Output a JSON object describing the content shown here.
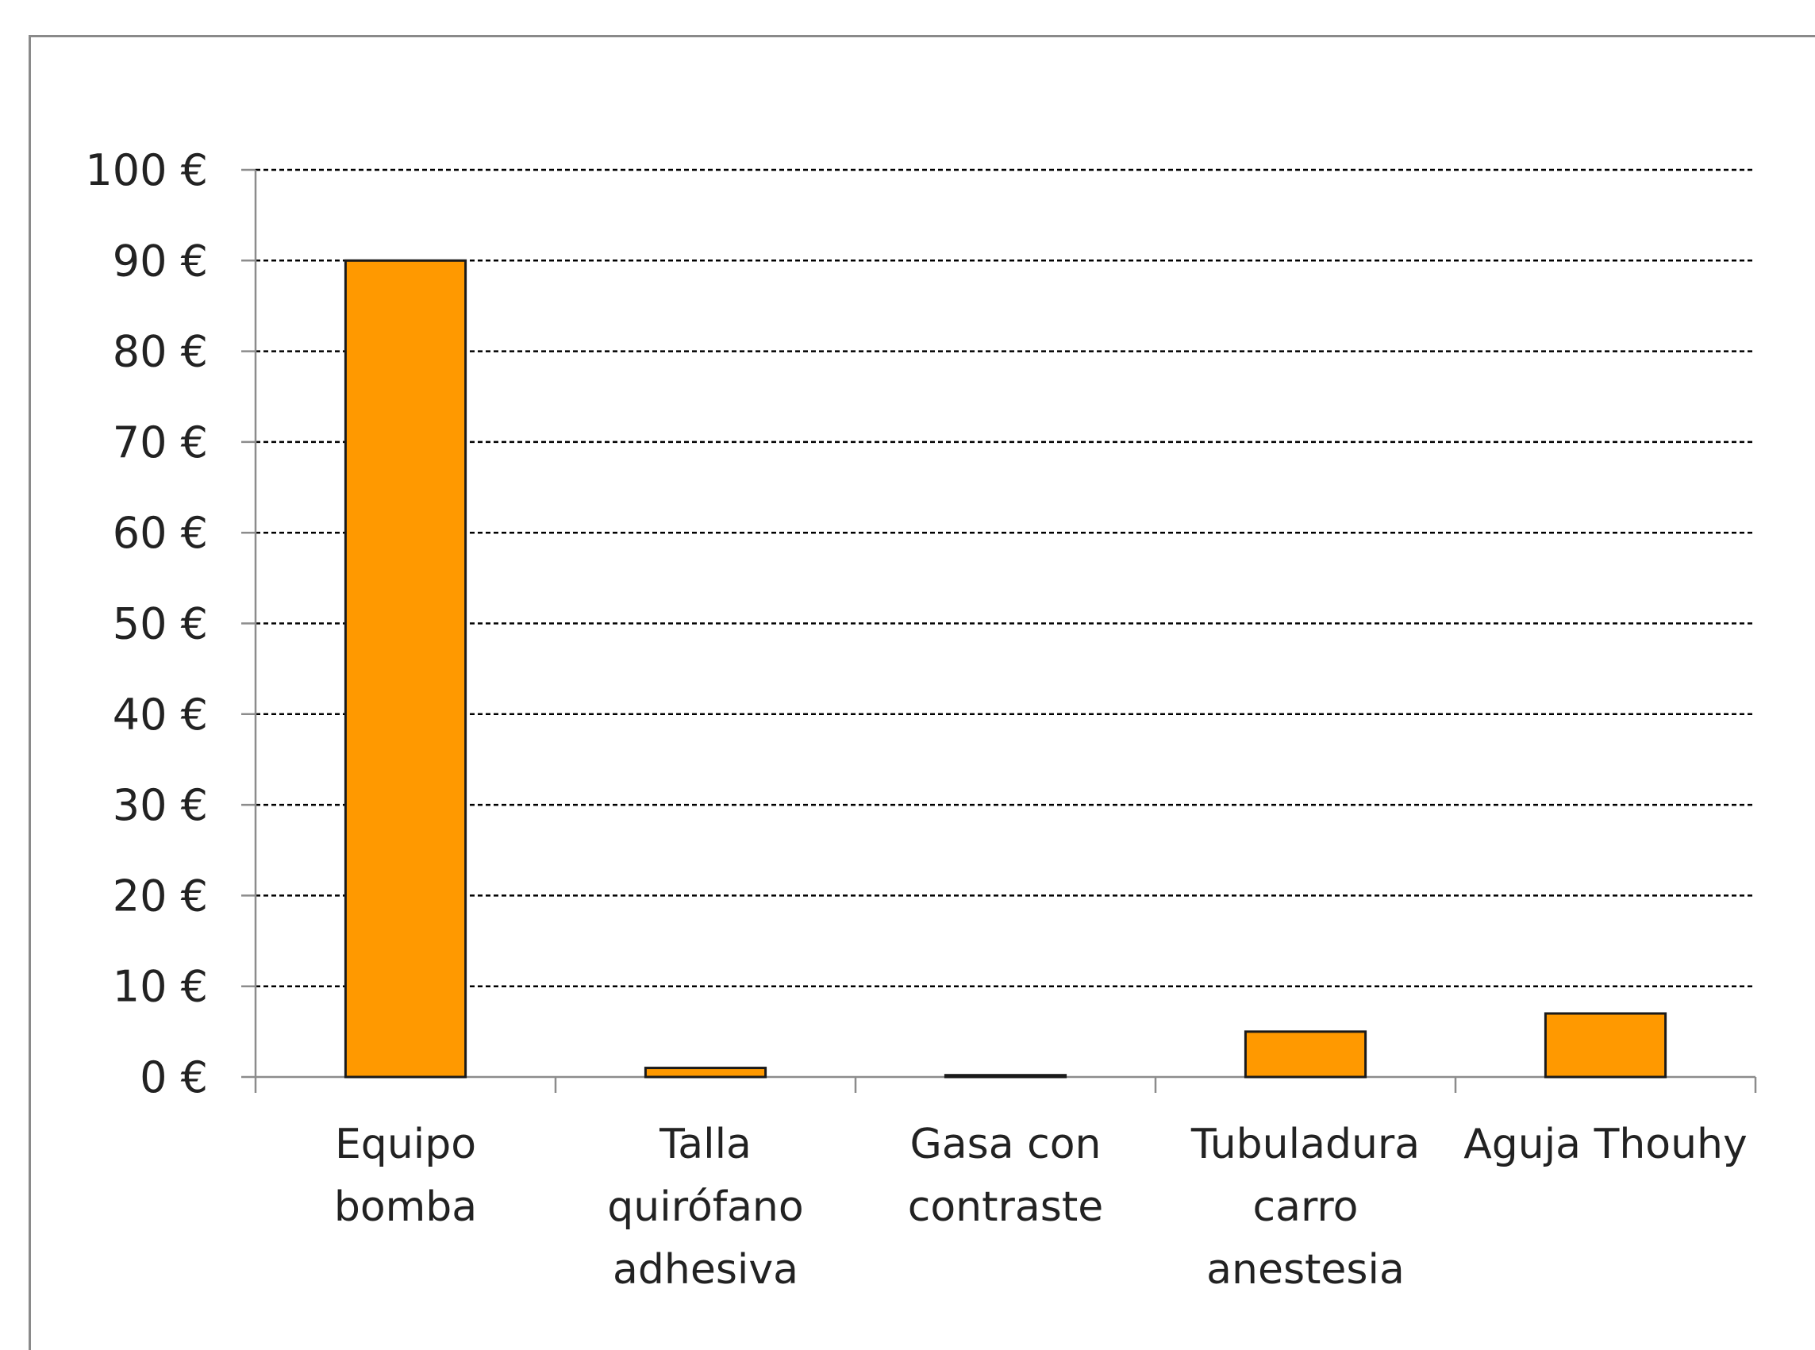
{
  "chart_data": {
    "type": "bar",
    "categories": [
      [
        "Equipo",
        "bomba"
      ],
      [
        "Talla",
        "quirófano",
        "adhesiva"
      ],
      [
        "Gasa con",
        "contraste"
      ],
      [
        "Tubuladura",
        "carro",
        "anestesia"
      ],
      [
        "Aguja Thouhy"
      ]
    ],
    "values": [
      90,
      1,
      0.2,
      5,
      7
    ],
    "yticks": [
      "0 €",
      "10 €",
      "20 €",
      "30 €",
      "40 €",
      "50 €",
      "60 €",
      "70 €",
      "80 €",
      "90 €",
      "100 €"
    ],
    "ylim": [
      0,
      100
    ],
    "grid": true,
    "colors": {
      "bar_fill": "#FF9900",
      "bar_stroke": "#1a1a1a",
      "grid": "#000000",
      "axis": "#8c8c8c"
    }
  }
}
